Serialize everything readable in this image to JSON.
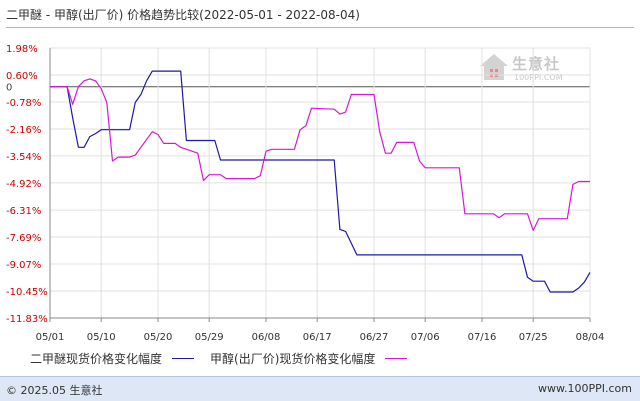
{
  "title": "二甲醚 - 甲醇(出厂价) 价格趋势比较(2022-05-01 - 2022-08-04)",
  "watermark": {
    "name": "生意社",
    "url": "100PPI.COM"
  },
  "footer": {
    "copyright": "© 2025.05 生意社",
    "site": "www.100PPI.com"
  },
  "colors": {
    "series1": "#1a1aa6",
    "series2": "#d617d6",
    "y_label": "#cc0000",
    "grid": "#e0e0e0",
    "axis": "#888888",
    "zero": "#555555"
  },
  "chart_data": {
    "type": "line",
    "title": "二甲醚 - 甲醇(出厂价) 价格趋势比较(2022-05-01 - 2022-08-04)",
    "xlabel": "",
    "ylabel": "",
    "x_ticks": [
      "05/01",
      "05/10",
      "05/20",
      "05/29",
      "06/08",
      "06/17",
      "06/27",
      "07/06",
      "07/16",
      "07/25",
      "08/04"
    ],
    "y_ticks": [
      "1.98%",
      "0.60%",
      "0",
      "-0.78%",
      "-2.16%",
      "-3.54%",
      "-4.92%",
      "-6.31%",
      "-7.69%",
      "-9.07%",
      "-10.45%",
      "-11.83%"
    ],
    "y_tick_values": [
      1.98,
      0.6,
      0,
      -0.78,
      -2.16,
      -3.54,
      -4.92,
      -6.31,
      -7.69,
      -9.07,
      -10.45,
      -11.83
    ],
    "ylim": [
      -11.83,
      1.98
    ],
    "x_range": [
      "2022-05-01",
      "2022-08-04"
    ],
    "grid": true,
    "legend_position": "bottom",
    "series": [
      {
        "name": "二甲醚现货价格变化幅度",
        "points": [
          [
            "2022-05-01",
            0
          ],
          [
            "2022-05-04",
            0
          ],
          [
            "2022-05-05",
            -1.6
          ],
          [
            "2022-05-06",
            -3.1
          ],
          [
            "2022-05-07",
            -3.1
          ],
          [
            "2022-05-08",
            -2.55
          ],
          [
            "2022-05-09",
            -2.4
          ],
          [
            "2022-05-10",
            -2.2
          ],
          [
            "2022-05-15",
            -2.2
          ],
          [
            "2022-05-16",
            -0.8
          ],
          [
            "2022-05-17",
            -0.4
          ],
          [
            "2022-05-18",
            0.3
          ],
          [
            "2022-05-19",
            0.8
          ],
          [
            "2022-05-24",
            0.8
          ],
          [
            "2022-05-25",
            -2.75
          ],
          [
            "2022-05-30",
            -2.75
          ],
          [
            "2022-05-31",
            -3.75
          ],
          [
            "2022-06-20",
            -3.75
          ],
          [
            "2022-06-21",
            -7.3
          ],
          [
            "2022-06-22",
            -7.4
          ],
          [
            "2022-06-24",
            -8.6
          ],
          [
            "2022-07-23",
            -8.6
          ],
          [
            "2022-07-24",
            -9.75
          ],
          [
            "2022-07-25",
            -9.95
          ],
          [
            "2022-07-27",
            -9.95
          ],
          [
            "2022-07-28",
            -10.5
          ],
          [
            "2022-08-01",
            -10.5
          ],
          [
            "2022-08-02",
            -10.3
          ],
          [
            "2022-08-03",
            -10.0
          ],
          [
            "2022-08-04",
            -9.5
          ]
        ]
      },
      {
        "name": "甲醇(出厂价)现货价格变化幅度",
        "points": [
          [
            "2022-05-01",
            0
          ],
          [
            "2022-05-04",
            0
          ],
          [
            "2022-05-05",
            -0.9
          ],
          [
            "2022-05-06",
            0
          ],
          [
            "2022-05-07",
            0.3
          ],
          [
            "2022-05-08",
            0.4
          ],
          [
            "2022-05-09",
            0.3
          ],
          [
            "2022-05-10",
            -0.1
          ],
          [
            "2022-05-11",
            -0.8
          ],
          [
            "2022-05-12",
            -3.8
          ],
          [
            "2022-05-13",
            -3.6
          ],
          [
            "2022-05-15",
            -3.6
          ],
          [
            "2022-05-16",
            -3.5
          ],
          [
            "2022-05-17",
            -3.1
          ],
          [
            "2022-05-19",
            -2.3
          ],
          [
            "2022-05-20",
            -2.45
          ],
          [
            "2022-05-21",
            -2.9
          ],
          [
            "2022-05-23",
            -2.9
          ],
          [
            "2022-05-24",
            -3.1
          ],
          [
            "2022-05-27",
            -3.4
          ],
          [
            "2022-05-28",
            -4.8
          ],
          [
            "2022-05-29",
            -4.5
          ],
          [
            "2022-05-31",
            -4.5
          ],
          [
            "2022-06-01",
            -4.7
          ],
          [
            "2022-06-06",
            -4.7
          ],
          [
            "2022-06-07",
            -4.55
          ],
          [
            "2022-06-08",
            -3.3
          ],
          [
            "2022-06-09",
            -3.2
          ],
          [
            "2022-06-13",
            -3.2
          ],
          [
            "2022-06-14",
            -2.2
          ],
          [
            "2022-06-15",
            -2.0
          ],
          [
            "2022-06-16",
            -1.1
          ],
          [
            "2022-06-20",
            -1.15
          ],
          [
            "2022-06-21",
            -1.4
          ],
          [
            "2022-06-22",
            -1.3
          ],
          [
            "2022-06-23",
            -0.4
          ],
          [
            "2022-06-27",
            -0.4
          ],
          [
            "2022-06-28",
            -2.3
          ],
          [
            "2022-06-29",
            -3.4
          ],
          [
            "2022-06-30",
            -3.4
          ],
          [
            "2022-07-01",
            -2.85
          ],
          [
            "2022-07-04",
            -2.85
          ],
          [
            "2022-07-05",
            -3.8
          ],
          [
            "2022-07-06",
            -4.15
          ],
          [
            "2022-07-12",
            -4.15
          ],
          [
            "2022-07-13",
            -6.5
          ],
          [
            "2022-07-18",
            -6.5
          ],
          [
            "2022-07-19",
            -6.7
          ],
          [
            "2022-07-20",
            -6.5
          ],
          [
            "2022-07-24",
            -6.5
          ],
          [
            "2022-07-25",
            -7.35
          ],
          [
            "2022-07-26",
            -6.75
          ],
          [
            "2022-07-31",
            -6.75
          ],
          [
            "2022-08-01",
            -5.0
          ],
          [
            "2022-08-02",
            -4.85
          ],
          [
            "2022-08-04",
            -4.85
          ]
        ]
      }
    ]
  }
}
